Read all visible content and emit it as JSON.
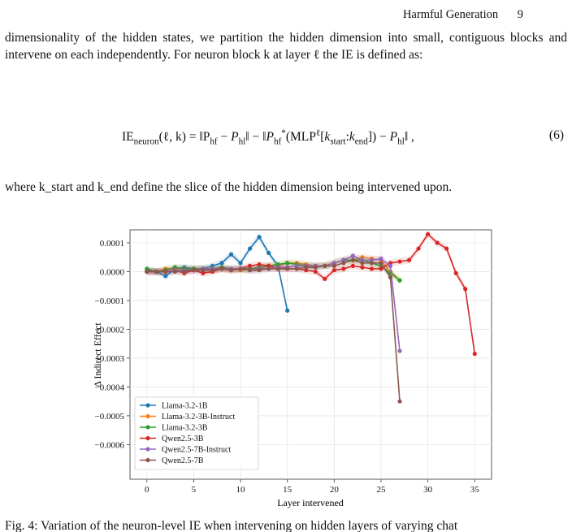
{
  "running_head": {
    "title": "Harmful Generation",
    "page_number": "9"
  },
  "paragraph_1": "dimensionality of the hidden states, we partition the hidden dimension into small, contiguous blocks and intervene on each independently. For neuron block k at layer ℓ the IE is defined as:",
  "equation": {
    "lhs": "IE",
    "lhs_sub": "neuron",
    "args": "(ℓ, k) = ‖P",
    "number": "(6)"
  },
  "paragraph_2": "where k_start and k_end define the slice of the hidden dimension being intervened upon.",
  "caption": "Fig. 4: Variation of the neuron-level IE when intervening on hidden layers of varying chat",
  "chart_data": {
    "type": "line",
    "title": "",
    "xlabel": "Layer intervened",
    "ylabel": "Δ Indirect Effect",
    "xlim": [
      -1.8,
      36.8
    ],
    "ylim": [
      -0.00072,
      0.000145
    ],
    "xticks": [
      0,
      5,
      10,
      15,
      20,
      25,
      30,
      35
    ],
    "yticks": [
      0.0001,
      0.0,
      -0.0001,
      -0.0002,
      -0.0003,
      -0.0004,
      -0.0005,
      -0.0006
    ],
    "ytick_labels": [
      "0.0001",
      "0.0000",
      "−0.0001",
      "−0.0002",
      "−0.0003",
      "−0.0004",
      "−0.0005",
      "−0.0006"
    ],
    "grid": true,
    "legend": "lower-left",
    "series": [
      {
        "name": "Llama-3.2-1B",
        "color": "#1f77b4",
        "x": [
          0,
          1,
          2,
          3,
          4,
          5,
          6,
          7,
          8,
          9,
          10,
          11,
          12,
          13,
          14,
          15
        ],
        "y": [
          5e-06,
          0.0,
          -1.5e-05,
          1e-05,
          1.5e-05,
          1e-05,
          1e-05,
          2e-05,
          3e-05,
          6e-05,
          3e-05,
          8e-05,
          0.00012,
          6.5e-05,
          2e-05,
          -0.000135
        ]
      },
      {
        "name": "Llama-3.2-3B-Instruct",
        "color": "#ff7f0e",
        "x": [
          0,
          1,
          2,
          3,
          4,
          5,
          6,
          7,
          8,
          9,
          10,
          11,
          12,
          13,
          14,
          15,
          16,
          17,
          18,
          19,
          20,
          21,
          22,
          23,
          24,
          25,
          26,
          27
        ],
        "y": [
          0.0,
          0.0,
          1e-05,
          1e-05,
          1e-05,
          1e-05,
          1e-05,
          5e-06,
          1e-05,
          1e-05,
          5e-06,
          1e-05,
          1e-05,
          2e-05,
          2e-05,
          3e-05,
          3e-05,
          2.5e-05,
          2e-05,
          2e-05,
          3e-05,
          4e-05,
          4e-05,
          5e-05,
          4.5e-05,
          4e-05,
          0.0,
          -3e-05
        ]
      },
      {
        "name": "Llama-3.2-3B",
        "color": "#2ca02c",
        "x": [
          0,
          1,
          2,
          3,
          4,
          5,
          6,
          7,
          8,
          9,
          10,
          11,
          12,
          13,
          14,
          15,
          16,
          17,
          18,
          19,
          20,
          21,
          22,
          23,
          24,
          25,
          26,
          27
        ],
        "y": [
          1e-05,
          0.0,
          5e-06,
          1.5e-05,
          1e-05,
          1e-05,
          1e-05,
          1e-05,
          1.5e-05,
          1e-05,
          1e-05,
          1e-05,
          1.5e-05,
          2e-05,
          2.5e-05,
          3e-05,
          2.5e-05,
          2e-05,
          2e-05,
          2e-05,
          3e-05,
          4e-05,
          4e-05,
          4e-05,
          3e-05,
          2e-05,
          -5e-06,
          -3e-05
        ]
      },
      {
        "name": "Qwen2.5-3B",
        "color": "#d62728",
        "x": [
          0,
          1,
          2,
          3,
          4,
          5,
          6,
          7,
          8,
          9,
          10,
          11,
          12,
          13,
          14,
          15,
          16,
          17,
          18,
          19,
          20,
          21,
          22,
          23,
          24,
          25,
          26,
          27,
          28,
          29,
          30,
          31,
          32,
          33,
          34,
          35
        ],
        "y": [
          0.0,
          0.0,
          0.0,
          5e-06,
          -5e-06,
          5e-06,
          -5e-06,
          0.0,
          1e-05,
          5e-06,
          1e-05,
          2e-05,
          2.5e-05,
          2e-05,
          1e-05,
          1e-05,
          1e-05,
          5e-06,
          0.0,
          -2.5e-05,
          5e-06,
          1e-05,
          2e-05,
          1.5e-05,
          1e-05,
          1e-05,
          3e-05,
          3.5e-05,
          4e-05,
          8e-05,
          0.00013,
          0.0001,
          8e-05,
          -5e-06,
          -6e-05,
          -0.000285
        ]
      },
      {
        "name": "Qwen2.5-7B-Instruct",
        "color": "#9467bd",
        "x": [
          0,
          1,
          2,
          3,
          4,
          5,
          6,
          7,
          8,
          9,
          10,
          11,
          12,
          13,
          14,
          15,
          16,
          17,
          18,
          19,
          20,
          21,
          22,
          23,
          24,
          25,
          26,
          27
        ],
        "y": [
          0.0,
          0.0,
          0.0,
          5e-06,
          5e-06,
          5e-06,
          1e-05,
          1e-05,
          1e-05,
          1e-05,
          1e-05,
          5e-06,
          1e-05,
          1e-05,
          1.5e-05,
          1.5e-05,
          2e-05,
          2e-05,
          2e-05,
          2e-05,
          3e-05,
          4e-05,
          5.5e-05,
          4e-05,
          4e-05,
          4.5e-05,
          2e-05,
          -0.000275
        ]
      },
      {
        "name": "Qwen2.5-7B",
        "color": "#8c564b",
        "x": [
          0,
          1,
          2,
          3,
          4,
          5,
          6,
          7,
          8,
          9,
          10,
          11,
          12,
          13,
          14,
          15,
          16,
          17,
          18,
          19,
          20,
          21,
          22,
          23,
          24,
          25,
          26,
          27
        ],
        "y": [
          0.0,
          0.0,
          0.0,
          0.0,
          0.0,
          5e-06,
          5e-06,
          5e-06,
          1e-05,
          5e-06,
          1e-05,
          5e-06,
          5e-06,
          1e-05,
          1e-05,
          1e-05,
          1e-05,
          1.5e-05,
          1.5e-05,
          2e-05,
          2e-05,
          3e-05,
          4e-05,
          3e-05,
          3e-05,
          3e-05,
          -2e-05,
          -0.00045
        ]
      }
    ]
  }
}
